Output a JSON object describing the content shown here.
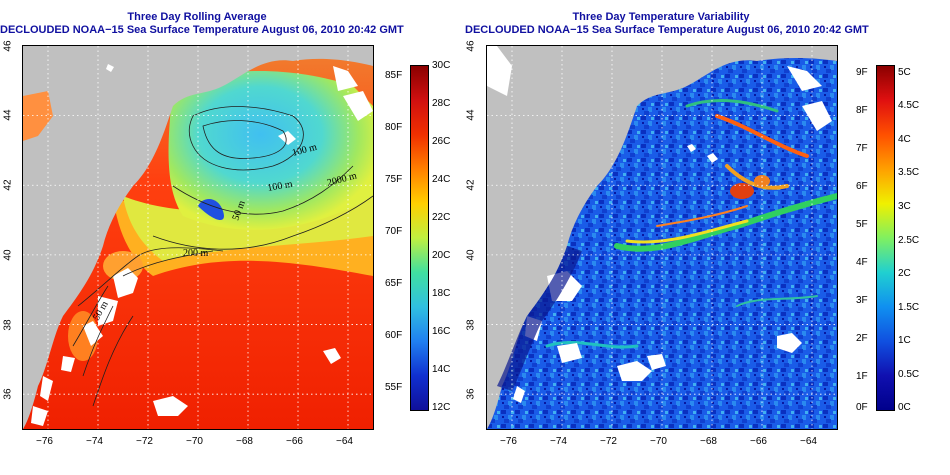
{
  "left_panel": {
    "title": "Three Day Rolling Average",
    "subtitle": "DECLOUDED NOAA−15 Sea Surface Temperature August 06, 2010 20:42 GMT",
    "x_ticks": [
      "−76",
      "−74",
      "−72",
      "−70",
      "−68",
      "−66",
      "−64"
    ],
    "y_ticks": [
      "36",
      "38",
      "40",
      "42",
      "44",
      "46"
    ],
    "contour_labels": [
      "100 m",
      "100 m",
      "2000 m",
      "50 m",
      "200 m",
      "50 m"
    ],
    "colorbar_f_labels": [
      "85F",
      "80F",
      "75F",
      "70F",
      "65F",
      "60F",
      "55F"
    ],
    "colorbar_c_labels": [
      "30C",
      "28C",
      "26C",
      "24C",
      "22C",
      "20C",
      "18C",
      "16C",
      "14C",
      "12C"
    ],
    "colorbar_colors": [
      "#8b0000",
      "#d01010",
      "#f03000",
      "#ff8000",
      "#ffd000",
      "#c0f040",
      "#40e0a0",
      "#30c0e0",
      "#2080f0",
      "#1030d0",
      "#10109a"
    ]
  },
  "right_panel": {
    "title": "Three Day Temperature Variability",
    "subtitle": "DECLOUDED NOAA−15 Sea Surface Temperature August 06, 2010 20:42 GMT",
    "x_ticks": [
      "−76",
      "−74",
      "−72",
      "−70",
      "−68",
      "−66",
      "−64"
    ],
    "y_ticks": [
      "36",
      "38",
      "40",
      "42",
      "44",
      "46"
    ],
    "colorbar_f_labels": [
      "9F",
      "8F",
      "7F",
      "6F",
      "5F",
      "4F",
      "3F",
      "2F",
      "1F",
      "0F"
    ],
    "colorbar_c_labels": [
      "5C",
      "4.5C",
      "4C",
      "3.5C",
      "3C",
      "2.5C",
      "2C",
      "1.5C",
      "1C",
      "0.5C",
      "0C"
    ],
    "colorbar_colors": [
      "#8b0000",
      "#e01010",
      "#ff5000",
      "#ffa000",
      "#f0f000",
      "#80f060",
      "#20d0d0",
      "#1090f0",
      "#1050e0",
      "#1010b0",
      "#00008b"
    ]
  },
  "map_extent": {
    "lon": [
      -77,
      -63
    ],
    "lat": [
      35,
      46
    ]
  },
  "land_color": "#c0c0c0",
  "cloud_color": "#ffffff"
}
